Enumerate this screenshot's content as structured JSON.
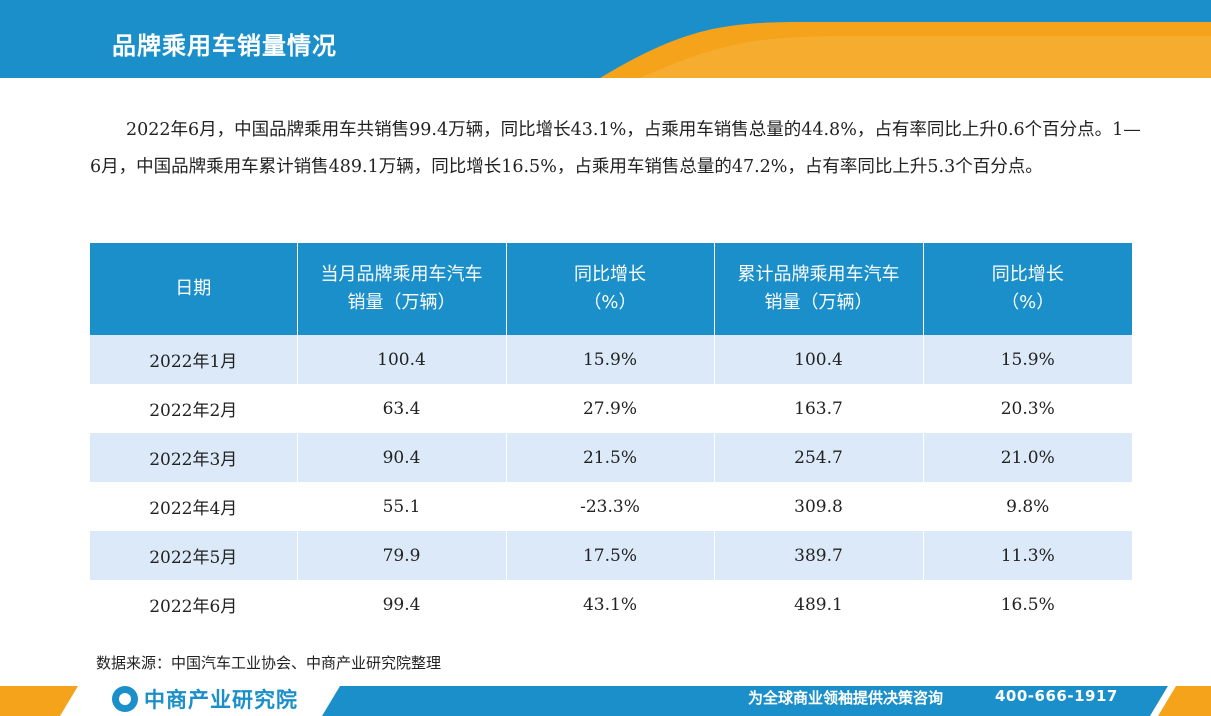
{
  "header": {
    "title": "品牌乘用车销量情况"
  },
  "summary": "2022年6月，中国品牌乘用车共销售99.4万辆，同比增长43.1%，占乘用车销售总量的44.8%，占有率同比上升0.6个百分点。1—6月，中国品牌乘用车累计销售489.1万辆，同比增长16.5%，占乘用车销售总量的47.2%，占有率同比上升5.3个百分点。",
  "table": {
    "headers": [
      [
        "日期"
      ],
      [
        "当月品牌乘用车汽车",
        "销量（万辆）"
      ],
      [
        "同比增长",
        "（%）"
      ],
      [
        "累计品牌乘用车汽车",
        "销量（万辆）"
      ],
      [
        "同比增长",
        "（%）"
      ]
    ],
    "rows": [
      [
        "2022年1月",
        "100.4",
        "15.9%",
        "100.4",
        "15.9%"
      ],
      [
        "2022年2月",
        "63.4",
        "27.9%",
        "163.7",
        "20.3%"
      ],
      [
        "2022年3月",
        "90.4",
        "21.5%",
        "254.7",
        "21.0%"
      ],
      [
        "2022年4月",
        "55.1",
        "-23.3%",
        "309.8",
        "9.8%"
      ],
      [
        "2022年5月",
        "79.9",
        "17.5%",
        "389.7",
        "11.3%"
      ],
      [
        "2022年6月",
        "99.4",
        "43.1%",
        "489.1",
        "16.5%"
      ]
    ]
  },
  "source": "数据来源：中国汽车工业协会、中商产业研究院整理",
  "footer": {
    "logo_text": "中商产业研究院",
    "slogan": "为全球商业领袖提供决策咨询",
    "phone": "400-666-1917"
  },
  "colors": {
    "primary_blue": "#1a8fc9",
    "accent_orange": "#f5a31a",
    "row_stripe": "#dbe9f8"
  }
}
